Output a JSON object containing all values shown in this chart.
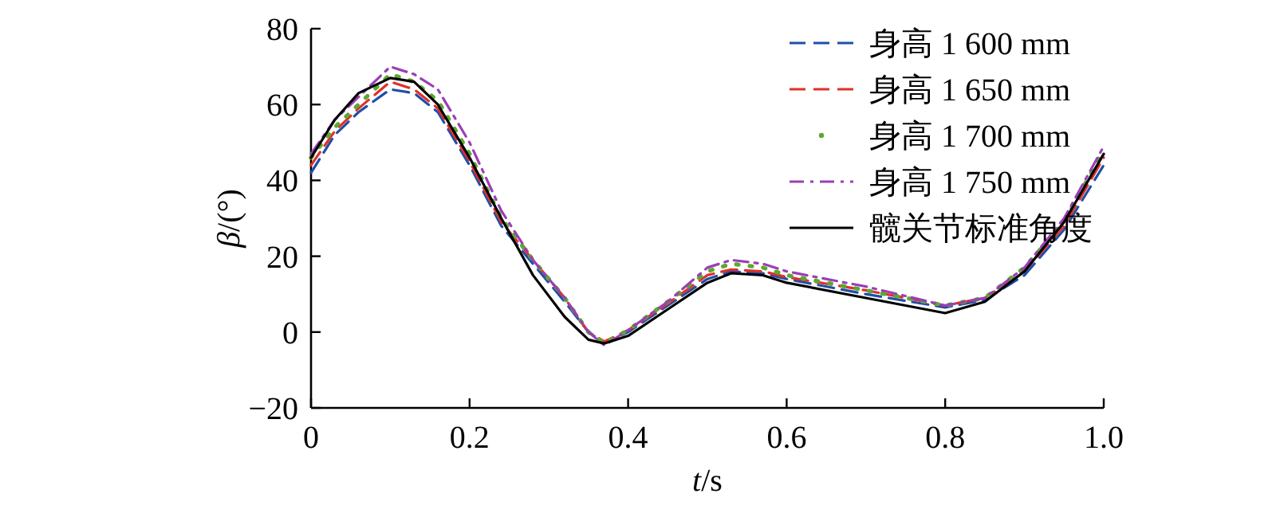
{
  "chart_data": {
    "type": "line",
    "xlabel": "t/s",
    "ylabel": "β/(°)",
    "xlim": [
      0,
      1
    ],
    "ylim": [
      -20,
      80
    ],
    "xticks": [
      0,
      0.2,
      0.4,
      0.6,
      0.8,
      {
        "value": 1,
        "label": "1.0"
      }
    ],
    "yticks": [
      {
        "value": -20,
        "label": "−20"
      },
      0,
      20,
      40,
      60,
      80
    ],
    "legend": "top right",
    "grid": false,
    "series": [
      {
        "name": "身高 1 600 mm",
        "color": "#1f4fa8",
        "line_style": "dashed",
        "x": [
          0,
          0.03,
          0.06,
          0.1,
          0.13,
          0.16,
          0.2,
          0.24,
          0.28,
          0.32,
          0.35,
          0.37,
          0.4,
          0.45,
          0.5,
          0.53,
          0.57,
          0.6,
          0.7,
          0.8,
          0.85,
          0.9,
          0.95,
          1.0
        ],
        "values": [
          42,
          52,
          58,
          64,
          63,
          58,
          44,
          28,
          18,
          8,
          0,
          -3,
          0,
          7,
          14,
          16,
          15.5,
          14,
          10,
          6.5,
          8.5,
          15,
          27,
          44
        ]
      },
      {
        "name": "身高 1 650 mm",
        "color": "#e0302a",
        "line_style": "dashed",
        "x": [
          0,
          0.03,
          0.06,
          0.1,
          0.13,
          0.16,
          0.2,
          0.24,
          0.28,
          0.32,
          0.35,
          0.37,
          0.4,
          0.45,
          0.5,
          0.53,
          0.57,
          0.6,
          0.7,
          0.8,
          0.85,
          0.9,
          0.95,
          1.0
        ],
        "values": [
          44,
          53,
          59,
          66,
          64,
          59,
          45,
          29,
          19,
          9,
          0,
          -2.5,
          0.5,
          7.5,
          15,
          16.5,
          16,
          14.5,
          11,
          7,
          9,
          16,
          28,
          46
        ]
      },
      {
        "name": "身高 1 700 mm",
        "color": "#5ca832",
        "line_style": "dotted",
        "x": [
          0,
          0.03,
          0.06,
          0.1,
          0.13,
          0.16,
          0.2,
          0.24,
          0.28,
          0.32,
          0.35,
          0.37,
          0.4,
          0.45,
          0.5,
          0.53,
          0.57,
          0.6,
          0.7,
          0.8,
          0.85,
          0.9,
          0.95,
          1.0
        ],
        "values": [
          46,
          54,
          60,
          68,
          66,
          61,
          47,
          30,
          19,
          9,
          0,
          -3,
          0.5,
          8,
          16,
          18,
          17,
          15,
          11,
          7,
          9,
          17,
          29,
          48
        ]
      },
      {
        "name": "身高 1 750 mm",
        "color": "#9b3fb5",
        "line_style": "dashdot",
        "x": [
          0,
          0.03,
          0.06,
          0.1,
          0.13,
          0.16,
          0.2,
          0.24,
          0.28,
          0.32,
          0.35,
          0.37,
          0.4,
          0.45,
          0.5,
          0.53,
          0.57,
          0.6,
          0.7,
          0.8,
          0.85,
          0.9,
          0.95,
          1.0
        ],
        "values": [
          47,
          56,
          62,
          70,
          68,
          64,
          50,
          32,
          19,
          9,
          0,
          -3.5,
          0.5,
          8,
          17,
          19,
          18,
          16,
          12,
          7,
          9,
          17,
          30,
          49
        ]
      },
      {
        "name": "髋关节标准角度",
        "color": "#000000",
        "line_style": "solid",
        "x": [
          0,
          0.03,
          0.06,
          0.1,
          0.13,
          0.16,
          0.2,
          0.24,
          0.28,
          0.32,
          0.35,
          0.37,
          0.4,
          0.45,
          0.5,
          0.53,
          0.57,
          0.6,
          0.7,
          0.8,
          0.85,
          0.9,
          0.95,
          1.0
        ],
        "values": [
          46,
          56,
          63,
          67,
          66,
          60,
          46,
          30,
          15,
          4,
          -2,
          -3,
          -1,
          6,
          13,
          15.5,
          15,
          13,
          9,
          5,
          8,
          16,
          29,
          47
        ]
      }
    ]
  }
}
